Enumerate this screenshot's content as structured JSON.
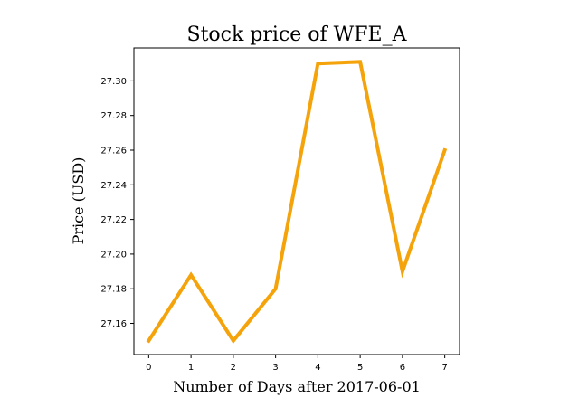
{
  "chart_data": {
    "type": "line",
    "title": "Stock price of WFE_A",
    "xlabel": "Number of Days after 2017-06-01",
    "ylabel": "Price (USD)",
    "x": [
      0,
      1,
      2,
      3,
      4,
      5,
      6,
      7
    ],
    "series": [
      {
        "values": [
          27.15,
          27.188,
          27.15,
          27.18,
          27.31,
          27.311,
          27.19,
          27.26
        ],
        "color": "#f5a30a"
      }
    ],
    "xticks": [
      "0",
      "1",
      "2",
      "3",
      "4",
      "5",
      "6",
      "7"
    ],
    "yticks": [
      "27.16",
      "27.18",
      "27.20",
      "27.22",
      "27.24",
      "27.26",
      "27.28",
      "27.30"
    ],
    "xlim": [
      -0.35,
      7.35
    ],
    "ylim": [
      27.142,
      27.319
    ],
    "grid": false,
    "legend": "none"
  }
}
